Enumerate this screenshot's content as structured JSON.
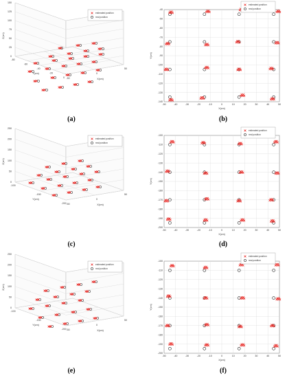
{
  "legend": {
    "estimated": "estimated position",
    "real": "real position"
  },
  "colors": {
    "estimated": "#e8231f",
    "real": "#222222",
    "grid": "#d9d9d9"
  },
  "chart_data": [
    {
      "id": "a",
      "caption": "(a)",
      "type": "scatter",
      "xlabel": "X(cm)",
      "ylabel": "Y(cm)",
      "zlabel": "Z(cm)",
      "zticks": [
        "0",
        "25",
        "50",
        "75",
        "100",
        "125",
        "150"
      ],
      "yticks": [
        "-80",
        "-60",
        "-40",
        "-20",
        "0"
      ],
      "xticks": [
        "-50",
        "0",
        "50"
      ],
      "real_points": [
        [
          90,
          70
        ],
        [
          117,
          66
        ],
        [
          140,
          63
        ],
        [
          77,
          82
        ],
        [
          104,
          78
        ],
        [
          128,
          74
        ],
        [
          150,
          71
        ],
        [
          55,
          92
        ],
        [
          82,
          88
        ],
        [
          106,
          85
        ],
        [
          128,
          82
        ],
        [
          150,
          79
        ],
        [
          48,
          104
        ],
        [
          72,
          100
        ],
        [
          96,
          96
        ],
        [
          118,
          93
        ],
        [
          140,
          90
        ],
        [
          56,
          118
        ],
        [
          80,
          113
        ],
        [
          102,
          109
        ],
        [
          124,
          106
        ],
        [
          146,
          102
        ],
        [
          68,
          131
        ],
        [
          91,
          127
        ],
        [
          113,
          123
        ],
        [
          134,
          119
        ]
      ],
      "est_points": [
        [
          86,
          70
        ],
        [
          112,
          66
        ],
        [
          135,
          63
        ],
        [
          72,
          82
        ],
        [
          99,
          78
        ],
        [
          123,
          74
        ],
        [
          144,
          71
        ],
        [
          50,
          92
        ],
        [
          77,
          88
        ],
        [
          101,
          85
        ],
        [
          123,
          82
        ],
        [
          145,
          79
        ],
        [
          42,
          104
        ],
        [
          67,
          100
        ],
        [
          91,
          96
        ],
        [
          113,
          93
        ],
        [
          135,
          90
        ],
        [
          50,
          118
        ],
        [
          75,
          113
        ],
        [
          97,
          109
        ],
        [
          119,
          106
        ],
        [
          141,
          102
        ],
        [
          62,
          131
        ],
        [
          86,
          127
        ],
        [
          108,
          123
        ],
        [
          129,
          119
        ]
      ]
    },
    {
      "id": "b",
      "caption": "(b)",
      "type": "scatter",
      "xlabel": "X(cm)",
      "ylabel": "Y(cm)",
      "xticks": [
        "-50",
        "-40",
        "-30",
        "-20",
        "-10",
        "0",
        "10",
        "20",
        "30",
        "40",
        "50"
      ],
      "yticks": [
        "-140",
        "-130",
        "-120",
        "-110",
        "-100",
        "-90",
        "-80",
        "-70",
        "-60",
        "-50",
        "-40"
      ],
      "xlim": [
        -50,
        50
      ],
      "ylim": [
        -140,
        -40
      ],
      "real_x": [
        -45,
        -15,
        15,
        45
      ],
      "real_y": [
        -45,
        -75,
        -105,
        -135
      ],
      "est_offsets": [
        [
          1,
          2
        ],
        [
          3,
          3
        ],
        [
          2,
          5
        ],
        [
          4,
          3
        ],
        [
          -2,
          -2
        ],
        [
          2,
          -3
        ],
        [
          -1,
          0
        ],
        [
          3,
          -1
        ],
        [
          -3,
          0
        ],
        [
          2,
          2
        ],
        [
          0,
          0
        ],
        [
          -2,
          1
        ],
        [
          1,
          -3
        ],
        [
          -2,
          -1
        ],
        [
          3,
          2
        ],
        [
          -1,
          -2
        ]
      ]
    },
    {
      "id": "c",
      "caption": "(c)",
      "type": "scatter",
      "xlabel": "X(cm)",
      "ylabel": "Y(cm)",
      "zlabel": "Z(cm)",
      "zticks": [
        "0",
        "50",
        "100",
        "150",
        "200",
        "250"
      ],
      "yticks": [
        "-100",
        "-150",
        "-200"
      ],
      "xticks": [
        "-50",
        "0",
        "50"
      ],
      "real_points": [
        [
          72,
          243
        ],
        [
          96,
          238
        ],
        [
          120,
          234
        ],
        [
          60,
          255
        ],
        [
          86,
          250
        ],
        [
          110,
          246
        ],
        [
          132,
          242
        ],
        [
          48,
          266
        ],
        [
          74,
          261
        ],
        [
          98,
          257
        ],
        [
          122,
          253
        ],
        [
          144,
          250
        ],
        [
          66,
          274
        ],
        [
          90,
          270
        ],
        [
          112,
          266
        ],
        [
          134,
          262
        ],
        [
          82,
          284
        ],
        [
          104,
          280
        ],
        [
          126,
          276
        ],
        [
          146,
          272
        ]
      ],
      "est_points": [
        [
          67,
          243
        ],
        [
          91,
          238
        ],
        [
          115,
          234
        ],
        [
          55,
          255
        ],
        [
          81,
          250
        ],
        [
          105,
          246
        ],
        [
          127,
          242
        ],
        [
          43,
          266
        ],
        [
          69,
          261
        ],
        [
          93,
          257
        ],
        [
          117,
          253
        ],
        [
          139,
          250
        ],
        [
          61,
          274
        ],
        [
          85,
          270
        ],
        [
          107,
          266
        ],
        [
          129,
          262
        ],
        [
          77,
          284
        ],
        [
          99,
          280
        ],
        [
          121,
          276
        ],
        [
          141,
          272
        ]
      ]
    },
    {
      "id": "d",
      "caption": "(d)",
      "type": "scatter",
      "xlabel": "X(cm)",
      "ylabel": "Y(cm)",
      "xticks": [
        "-50",
        "-40",
        "-30",
        "-20",
        "-10",
        "0",
        "10",
        "20",
        "30",
        "40",
        "50"
      ],
      "yticks": [
        "-200",
        "-190",
        "-180",
        "-170",
        "-160",
        "-150",
        "-140",
        "-130",
        "-120",
        "-110",
        "-100"
      ],
      "xlim": [
        -50,
        50
      ],
      "ylim": [
        -200,
        -100
      ],
      "real_x": [
        -45,
        -15,
        15,
        45
      ],
      "real_y": [
        -110,
        -140,
        -170,
        -195
      ],
      "est_offsets": [
        [
          2,
          3
        ],
        [
          -1,
          2
        ],
        [
          1,
          1
        ],
        [
          2,
          3
        ],
        [
          -2,
          1
        ],
        [
          1,
          -1
        ],
        [
          2,
          0
        ],
        [
          3,
          -1
        ],
        [
          -3,
          -1
        ],
        [
          2,
          1
        ],
        [
          0,
          -1
        ],
        [
          -2,
          0
        ],
        [
          -1,
          4
        ],
        [
          1,
          3
        ],
        [
          3,
          3
        ],
        [
          -1,
          2
        ]
      ]
    },
    {
      "id": "e",
      "caption": "(e)",
      "type": "scatter",
      "xlabel": "X(cm)",
      "ylabel": "Y(cm)",
      "zlabel": "Z(cm)",
      "zticks": [
        "0",
        "50",
        "100",
        "150",
        "200",
        "250"
      ],
      "yticks": [
        "-100",
        "-150",
        "-200"
      ],
      "xticks": [
        "-50",
        "0",
        "50"
      ],
      "real_points": [
        [
          70,
          423
        ],
        [
          94,
          418
        ],
        [
          118,
          414
        ],
        [
          140,
          410
        ],
        [
          58,
          436
        ],
        [
          84,
          432
        ],
        [
          108,
          428
        ],
        [
          130,
          424
        ],
        [
          48,
          449
        ],
        [
          72,
          445
        ],
        [
          96,
          441
        ],
        [
          120,
          437
        ],
        [
          62,
          462
        ],
        [
          86,
          458
        ],
        [
          110,
          454
        ],
        [
          132,
          450
        ],
        [
          76,
          475
        ],
        [
          98,
          471
        ],
        [
          120,
          467
        ],
        [
          142,
          463
        ]
      ],
      "est_points": [
        [
          65,
          423
        ],
        [
          89,
          418
        ],
        [
          113,
          414
        ],
        [
          135,
          410
        ],
        [
          53,
          436
        ],
        [
          79,
          432
        ],
        [
          103,
          428
        ],
        [
          125,
          424
        ],
        [
          43,
          449
        ],
        [
          67,
          445
        ],
        [
          91,
          441
        ],
        [
          115,
          437
        ],
        [
          57,
          462
        ],
        [
          81,
          458
        ],
        [
          105,
          454
        ],
        [
          127,
          450
        ],
        [
          71,
          475
        ],
        [
          93,
          471
        ],
        [
          115,
          467
        ],
        [
          137,
          463
        ]
      ]
    },
    {
      "id": "f",
      "caption": "(f)",
      "type": "scatter",
      "xlabel": "X(cm)",
      "ylabel": "Y(cm)",
      "xticks": [
        "-50",
        "-40",
        "-30",
        "-20",
        "-10",
        "0",
        "10",
        "20",
        "30",
        "40",
        "50"
      ],
      "yticks": [
        "-200",
        "-190",
        "-180",
        "-170",
        "-160",
        "-150",
        "-140",
        "-130",
        "-120",
        "-110",
        "-100"
      ],
      "xlim": [
        -50,
        50
      ],
      "ylim": [
        -200,
        -100
      ],
      "real_x": [
        -45,
        -15,
        15,
        45
      ],
      "real_y": [
        -110,
        -140,
        -170,
        -195
      ],
      "est_offsets": [
        [
          2,
          5
        ],
        [
          1,
          3
        ],
        [
          2,
          6
        ],
        [
          3,
          6
        ],
        [
          -1,
          2
        ],
        [
          1,
          0
        ],
        [
          3,
          0
        ],
        [
          4,
          -1
        ],
        [
          -2,
          0
        ],
        [
          2,
          1
        ],
        [
          1,
          -1
        ],
        [
          -1,
          0
        ],
        [
          1,
          5
        ],
        [
          2,
          4
        ],
        [
          3,
          4
        ],
        [
          2,
          3
        ]
      ]
    }
  ]
}
